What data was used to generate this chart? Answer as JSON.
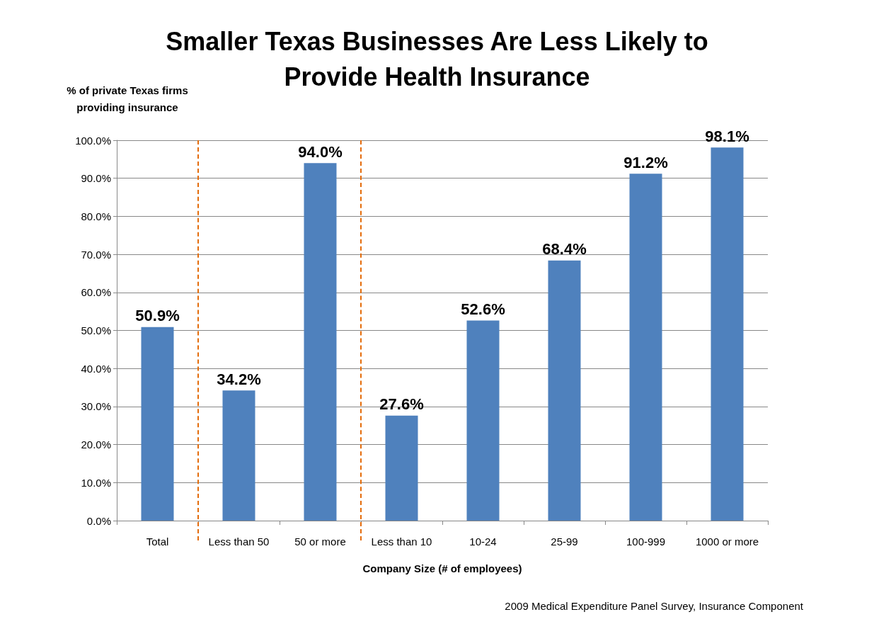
{
  "chart_data": {
    "type": "bar",
    "title": "Smaller Texas Businesses Are Less Likely to\nProvide Health Insurance",
    "ylabel": "% of private Texas firms\nproviding insurance",
    "xlabel": "Company Size (# of employees)",
    "categories": [
      "Total",
      "Less than 50",
      "50 or more",
      "Less than 10",
      "10-24",
      "25-99",
      "100-999",
      "1000 or more"
    ],
    "values": [
      50.9,
      34.2,
      94.0,
      27.6,
      52.6,
      68.4,
      91.2,
      98.1
    ],
    "value_labels": [
      "50.9%",
      "34.2%",
      "94.0%",
      "27.6%",
      "52.6%",
      "68.4%",
      "91.2%",
      "98.1%"
    ],
    "color": "#4f81bd",
    "ylim": [
      0,
      100
    ],
    "yticks": [
      {
        "value": 0,
        "label": "0.0%"
      },
      {
        "value": 10,
        "label": "10.0%"
      },
      {
        "value": 20,
        "label": "20.0%"
      },
      {
        "value": 30,
        "label": "30.0%"
      },
      {
        "value": 40,
        "label": "40.0%"
      },
      {
        "value": 50,
        "label": "50.0%"
      },
      {
        "value": 60,
        "label": "60.0%"
      },
      {
        "value": 70,
        "label": "70.0%"
      },
      {
        "value": 80,
        "label": "80.0%"
      },
      {
        "value": 90,
        "label": "90.0%"
      },
      {
        "value": 100,
        "label": "100.0%"
      }
    ],
    "grid": "y",
    "annotations": [
      "2009 Medical Expenditure Panel Survey, Insurance Component"
    ]
  }
}
